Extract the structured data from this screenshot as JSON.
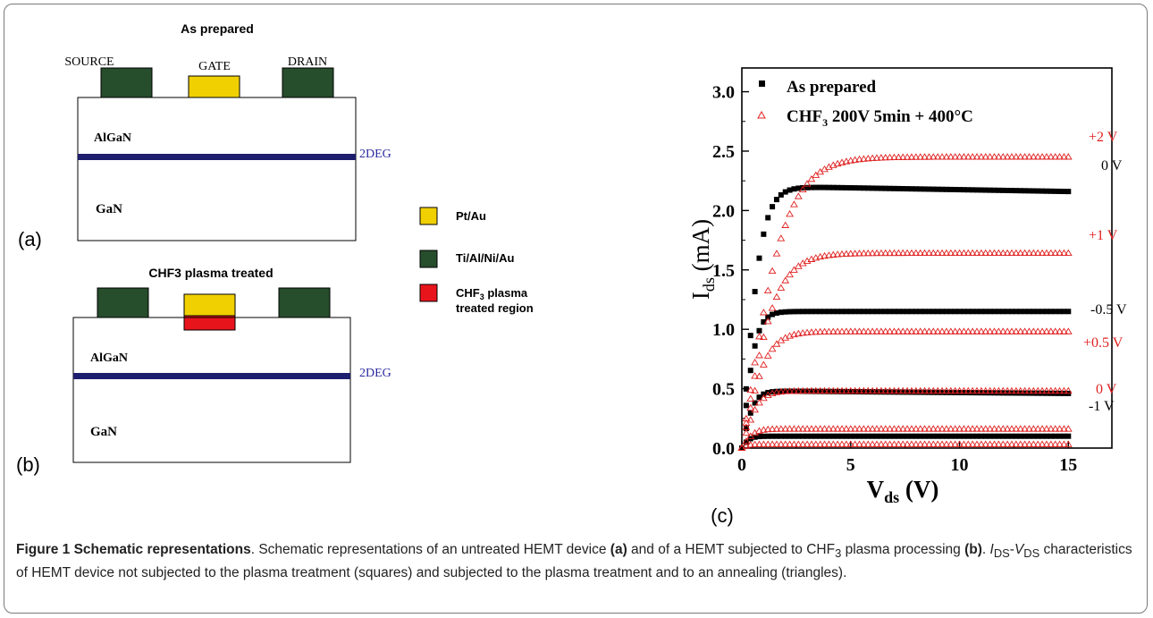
{
  "panel_a": {
    "title": "As prepared",
    "source_label": "SOURCE",
    "gate_label": "GATE",
    "drain_label": "DRAIN",
    "algan": "AlGaN",
    "gan": "GaN",
    "deg": "2DEG",
    "letter": "(a)"
  },
  "panel_b": {
    "title": "CHF3 plasma treated",
    "algan": "AlGaN",
    "gan": "GaN",
    "deg": "2DEG",
    "letter": "(b)"
  },
  "legend": {
    "pt_au": "Pt/Au",
    "ti_al": "Ti/Al/Ni/Au",
    "chf_line1_pre": "CHF",
    "chf_line1_sub": "3",
    "chf_line1_post": " plasma",
    "chf_line2": "treated region",
    "colors": {
      "pt_au": "#f0d000",
      "ti_al": "#264d2c",
      "chf": "#e8141c",
      "deg": "#1e1e6e"
    }
  },
  "panel_c_letter": "(c)",
  "chart_data": {
    "type": "scatter",
    "xlabel_main": "V",
    "xlabel_sub": "ds",
    "xlabel_unit": " (V)",
    "ylabel_main": "I",
    "ylabel_sub": "ds",
    "ylabel_unit": " (mA)",
    "xlim": [
      0,
      17
    ],
    "ylim": [
      0,
      3.2
    ],
    "x_ticks": [
      "0",
      "5",
      "10",
      "15"
    ],
    "x_tick_values": [
      0,
      5,
      10,
      15
    ],
    "y_ticks": [
      "0.0",
      "0.5",
      "1.0",
      "1.5",
      "2.0",
      "2.5",
      "3.0"
    ],
    "y_tick_values": [
      0.0,
      0.5,
      1.0,
      1.5,
      2.0,
      2.5,
      3.0
    ],
    "legend_as_prepared": "As prepared",
    "legend_chf_pre": "CHF",
    "legend_chf_sub": "3",
    "legend_chf_post": " 200V 5min + 400°C",
    "series": [
      {
        "name": "As prepared",
        "marker": "square",
        "color": "#000000",
        "curves": [
          {
            "gate_label": "0 V",
            "isat": 2.16,
            "ipeak": 2.2,
            "vk": 1.4
          },
          {
            "gate_label": "-0.5 V",
            "isat": 1.15,
            "ipeak": 1.15,
            "vk": 1.0
          },
          {
            "gate_label": "-1 V",
            "isat": 0.46,
            "ipeak": 0.48,
            "vk": 0.9
          },
          {
            "gate_label": "",
            "isat": 0.1,
            "ipeak": 0.1,
            "vk": 0.6
          }
        ]
      },
      {
        "name": "CHF3 200V 5min + 400°C",
        "marker": "triangle",
        "color": "#e02020",
        "curves": [
          {
            "gate_label": "+2 V",
            "isat": 2.45,
            "ipeak": 2.45,
            "vk": 3.2
          },
          {
            "gate_label": "+1 V",
            "isat": 1.64,
            "ipeak": 1.64,
            "vk": 2.5
          },
          {
            "gate_label": "+0.5 V",
            "isat": 0.98,
            "ipeak": 0.98,
            "vk": 1.8
          },
          {
            "gate_label": "0 V",
            "isat": 0.48,
            "ipeak": 0.48,
            "vk": 1.2
          },
          {
            "gate_label": "",
            "isat": 0.16,
            "ipeak": 0.16,
            "vk": 0.9
          },
          {
            "gate_label": "",
            "isat": 0.03,
            "ipeak": 0.03,
            "vk": 0.5
          }
        ]
      }
    ]
  },
  "caption": {
    "bold_title": "Figure 1 Schematic representations",
    "t1": ". Schematic representations of an untreated HEMT device ",
    "a": "(a)",
    "t2": " and of a HEMT subjected to CHF",
    "sub3": "3",
    "t3": " plasma processing ",
    "b": "(b)",
    "t4": ". ",
    "ids_i": "I",
    "ids_sub": "DS",
    "dash": "-",
    "vds_v": "V",
    "vds_sub": "DS",
    "t5": " characteristics of HEMT device not subjected to the plasma treatment (squares) and subjected to the plasma treatment and to an annealing (triangles)."
  }
}
